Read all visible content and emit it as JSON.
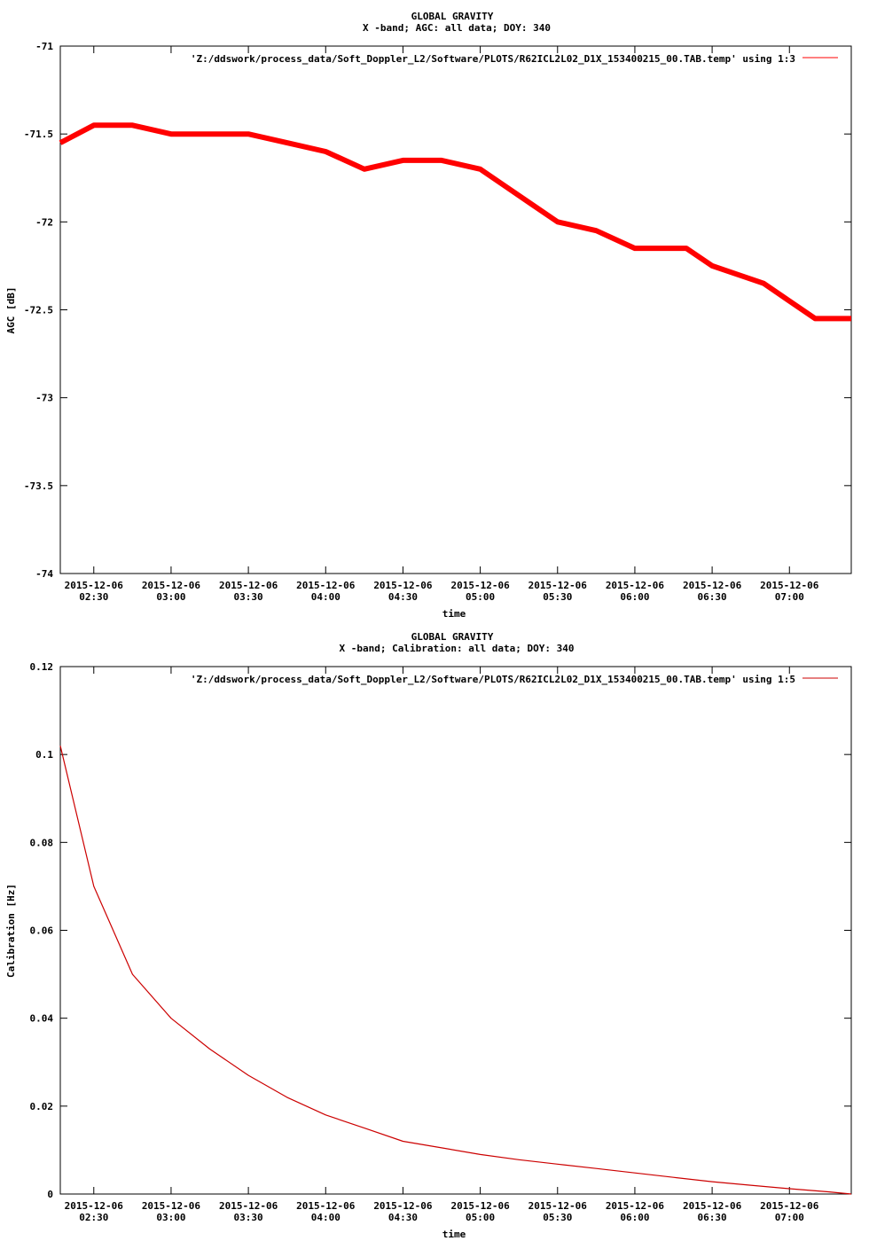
{
  "chart_data": [
    {
      "type": "line",
      "title": "GLOBAL GRAVITY",
      "subtitle": "X -band; AGC: all data; DOY: 340",
      "xlabel": "time",
      "ylabel": "AGC [dB]",
      "ylim": [
        -74,
        -71
      ],
      "yticks": [
        -71,
        -71.5,
        -72,
        -72.5,
        -73,
        -73.5,
        -74
      ],
      "ytick_labels": [
        "-71",
        "-71.5",
        "-72",
        "-72.5",
        "-73",
        "-73.5",
        "-74"
      ],
      "xlim": [
        "2015-12-06 02:17",
        "2015-12-06 07:24"
      ],
      "xticks": [
        "2015-12-06 02:30",
        "2015-12-06 03:00",
        "2015-12-06 03:30",
        "2015-12-06 04:00",
        "2015-12-06 04:30",
        "2015-12-06 05:00",
        "2015-12-06 05:30",
        "2015-12-06 06:00",
        "2015-12-06 06:30",
        "2015-12-06 07:00"
      ],
      "xtick_date": "2015-12-06",
      "xtick_time": [
        "02:30",
        "03:00",
        "03:30",
        "04:00",
        "04:30",
        "05:00",
        "05:30",
        "06:00",
        "06:30",
        "07:00"
      ],
      "legend": "'Z:/ddswork/process_data/Soft_Doppler_L2/Software/PLOTS/R62ICL2L02_D1X_153400215_00.TAB.temp' using 1:3",
      "legend_position": "top-right",
      "color": "#ff0000",
      "series": [
        {
          "x": [
            "02:17",
            "02:30",
            "02:45",
            "03:00",
            "03:15",
            "03:30",
            "03:45",
            "04:00",
            "04:15",
            "04:30",
            "04:45",
            "05:00",
            "05:10",
            "05:20",
            "05:30",
            "05:45",
            "06:00",
            "06:10",
            "06:20",
            "06:30",
            "06:40",
            "06:50",
            "07:00",
            "07:10",
            "07:24"
          ],
          "values": [
            -71.55,
            -71.45,
            -71.45,
            -71.5,
            -71.5,
            -71.5,
            -71.55,
            -71.6,
            -71.7,
            -71.65,
            -71.65,
            -71.7,
            -71.8,
            -71.9,
            -72.0,
            -72.05,
            -72.15,
            -72.15,
            -72.15,
            -72.25,
            -72.3,
            -72.35,
            -72.45,
            -72.55,
            -72.55
          ]
        }
      ]
    },
    {
      "type": "line",
      "title": "GLOBAL GRAVITY",
      "subtitle": "X -band; Calibration: all data; DOY: 340",
      "xlabel": "time",
      "ylabel": "Calibration [Hz]",
      "ylim": [
        0,
        0.12
      ],
      "yticks": [
        0,
        0.02,
        0.04,
        0.06,
        0.08,
        0.1,
        0.12
      ],
      "ytick_labels": [
        "0",
        "0.02",
        "0.04",
        "0.06",
        "0.08",
        "0.1",
        "0.12"
      ],
      "xlim": [
        "2015-12-06 02:17",
        "2015-12-06 07:24"
      ],
      "xticks": [
        "2015-12-06 02:30",
        "2015-12-06 03:00",
        "2015-12-06 03:30",
        "2015-12-06 04:00",
        "2015-12-06 04:30",
        "2015-12-06 05:00",
        "2015-12-06 05:30",
        "2015-12-06 06:00",
        "2015-12-06 06:30",
        "2015-12-06 07:00"
      ],
      "xtick_date": "2015-12-06",
      "xtick_time": [
        "02:30",
        "03:00",
        "03:30",
        "04:00",
        "04:30",
        "05:00",
        "05:30",
        "06:00",
        "06:30",
        "07:00"
      ],
      "legend": "'Z:/ddswork/process_data/Soft_Doppler_L2/Software/PLOTS/R62ICL2L02_D1X_153400215_00.TAB.temp' using 1:5",
      "legend_position": "top-right",
      "color": "#cc0000",
      "series": [
        {
          "x": [
            "02:17",
            "02:30",
            "02:45",
            "03:00",
            "03:15",
            "03:30",
            "03:45",
            "04:00",
            "04:15",
            "04:30",
            "04:45",
            "05:00",
            "05:15",
            "05:30",
            "05:45",
            "06:00",
            "06:15",
            "06:30",
            "06:45",
            "07:00",
            "07:15",
            "07:24"
          ],
          "values": [
            0.102,
            0.07,
            0.05,
            0.04,
            0.033,
            0.027,
            0.022,
            0.018,
            0.015,
            0.012,
            0.0105,
            0.009,
            0.0078,
            0.0068,
            0.0058,
            0.0048,
            0.0038,
            0.0028,
            0.002,
            0.0012,
            0.0005,
            0.0
          ]
        }
      ]
    }
  ]
}
